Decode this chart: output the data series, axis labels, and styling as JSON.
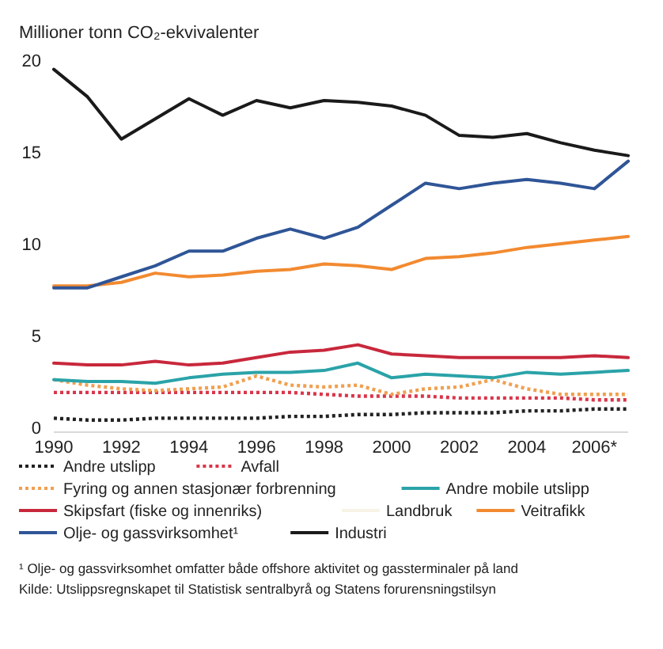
{
  "chart_data": {
    "type": "line",
    "ylabel": "Millioner tonn CO₂-ekvivalenter",
    "x": [
      1990,
      1991,
      1992,
      1993,
      1994,
      1995,
      1996,
      1997,
      1998,
      1999,
      2000,
      2001,
      2002,
      2003,
      2004,
      2005,
      2006,
      2007
    ],
    "xlim": [
      1990,
      2007
    ],
    "xticks": [
      1990,
      1992,
      1994,
      1996,
      1998,
      2000,
      2002,
      2004,
      {
        "value": 2006,
        "label": "2006*"
      }
    ],
    "ylim": [
      0,
      20
    ],
    "yticks": [
      0,
      5,
      10,
      15,
      20
    ],
    "grid": false,
    "legend": "bottom",
    "marker": "none",
    "series": [
      {
        "name": "Andre utslipp",
        "color": "#222222",
        "line_style": "dotted",
        "values": [
          0.5,
          0.4,
          0.4,
          0.5,
          0.5,
          0.5,
          0.5,
          0.6,
          0.6,
          0.7,
          0.7,
          0.8,
          0.8,
          0.8,
          0.9,
          0.9,
          1.0,
          1.0
        ]
      },
      {
        "name": "Avfall",
        "color": "#d9364a",
        "line_style": "dotted",
        "values": [
          1.9,
          1.9,
          1.9,
          1.9,
          1.9,
          1.9,
          1.9,
          1.9,
          1.8,
          1.7,
          1.7,
          1.7,
          1.6,
          1.6,
          1.6,
          1.6,
          1.5,
          1.5
        ]
      },
      {
        "name": "Fyring og annen stasjonær forbrenning",
        "color": "#f0a050",
        "line_style": "dotted",
        "values": [
          2.6,
          2.3,
          2.1,
          2.0,
          2.1,
          2.2,
          2.8,
          2.3,
          2.2,
          2.3,
          1.8,
          2.1,
          2.2,
          2.6,
          2.1,
          1.8,
          1.8,
          1.8
        ]
      },
      {
        "name": "Andre mobile utslipp",
        "color": "#2aa3a8",
        "line_style": "solid",
        "values": [
          2.6,
          2.5,
          2.5,
          2.4,
          2.7,
          2.9,
          3.0,
          3.0,
          3.1,
          3.5,
          2.7,
          2.9,
          2.8,
          2.7,
          3.0,
          2.9,
          3.0,
          3.1
        ]
      },
      {
        "name": "Skipsfart (fiske og innenriks)",
        "color": "#c8283c",
        "line_style": "solid",
        "values": [
          3.5,
          3.4,
          3.4,
          3.6,
          3.4,
          3.5,
          3.8,
          4.1,
          4.2,
          4.5,
          4.0,
          3.9,
          3.8,
          3.8,
          3.8,
          3.8,
          3.9,
          3.8
        ]
      },
      {
        "name": "Landbruk",
        "color": "#f7f3e6",
        "line_style": "solid",
        "values": [
          null,
          null,
          null,
          null,
          null,
          null,
          null,
          null,
          null,
          null,
          null,
          null,
          null,
          null,
          null,
          null,
          null,
          null
        ]
      },
      {
        "name": "Veitrafikk",
        "color": "#f28a30",
        "line_style": "solid",
        "values": [
          7.7,
          7.7,
          7.9,
          8.4,
          8.2,
          8.3,
          8.5,
          8.6,
          8.9,
          8.8,
          8.6,
          9.2,
          9.3,
          9.5,
          9.8,
          10.0,
          10.2,
          10.4
        ]
      },
      {
        "name": "Olje- og gassvirksomhet¹",
        "color": "#2f5597",
        "line_style": "solid",
        "values": [
          7.6,
          7.6,
          8.2,
          8.8,
          9.6,
          9.6,
          10.3,
          10.8,
          10.3,
          10.9,
          12.1,
          13.3,
          13.0,
          13.3,
          13.5,
          13.3,
          13.0,
          14.5
        ]
      },
      {
        "name": "Industri",
        "color": "#1a1a1a",
        "line_style": "solid",
        "values": [
          19.5,
          18.0,
          15.7,
          16.8,
          17.9,
          17.0,
          17.8,
          17.4,
          17.8,
          17.7,
          17.5,
          17.0,
          15.9,
          15.8,
          16.0,
          15.5,
          15.1,
          14.8
        ]
      }
    ],
    "annotations": [
      "¹ Olje- og gassvirksomhet omfatter både offshore aktivitet og gassterminaler på land",
      "Kilde: Utslippsregnskapet til Statistisk sentralbyrå og Statens forurensningstilsyn"
    ]
  }
}
